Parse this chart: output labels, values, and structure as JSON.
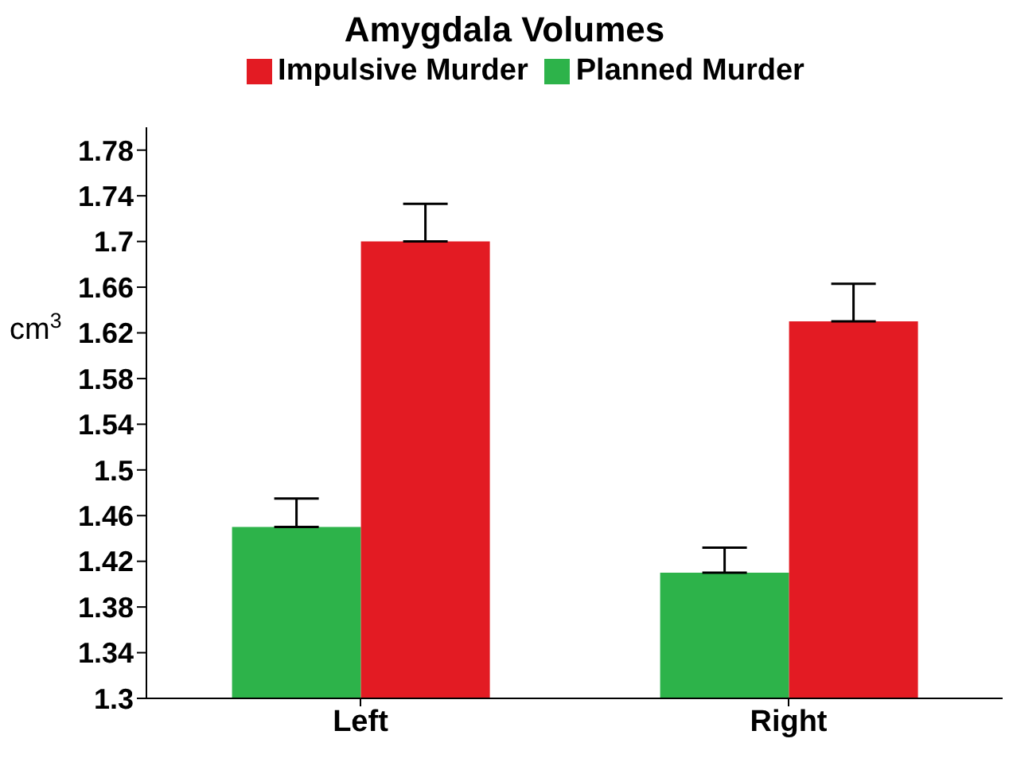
{
  "chart_data": {
    "type": "bar",
    "title": "Amygdala Volumes",
    "ylabel": "cm$^{3}$",
    "categories": [
      "Left",
      "Right"
    ],
    "series": [
      {
        "name": "Planned Murder",
        "color": "#2db34a",
        "values": [
          1.45,
          1.41
        ],
        "errors": [
          [
            1.45,
            1.475
          ],
          [
            1.41,
            1.432
          ]
        ]
      },
      {
        "name": "Impulsive Murder",
        "color": "#e31b23",
        "values": [
          1.7,
          1.63
        ],
        "errors": [
          [
            1.7,
            1.733
          ],
          [
            1.63,
            1.663
          ]
        ]
      }
    ],
    "ylim": [
      1.3,
      1.8
    ],
    "yticks": [
      1.3,
      1.34,
      1.38,
      1.42,
      1.46,
      1.5,
      1.54,
      1.58,
      1.62,
      1.66,
      1.7,
      1.74,
      1.78
    ],
    "grid": false,
    "legend": "top"
  }
}
